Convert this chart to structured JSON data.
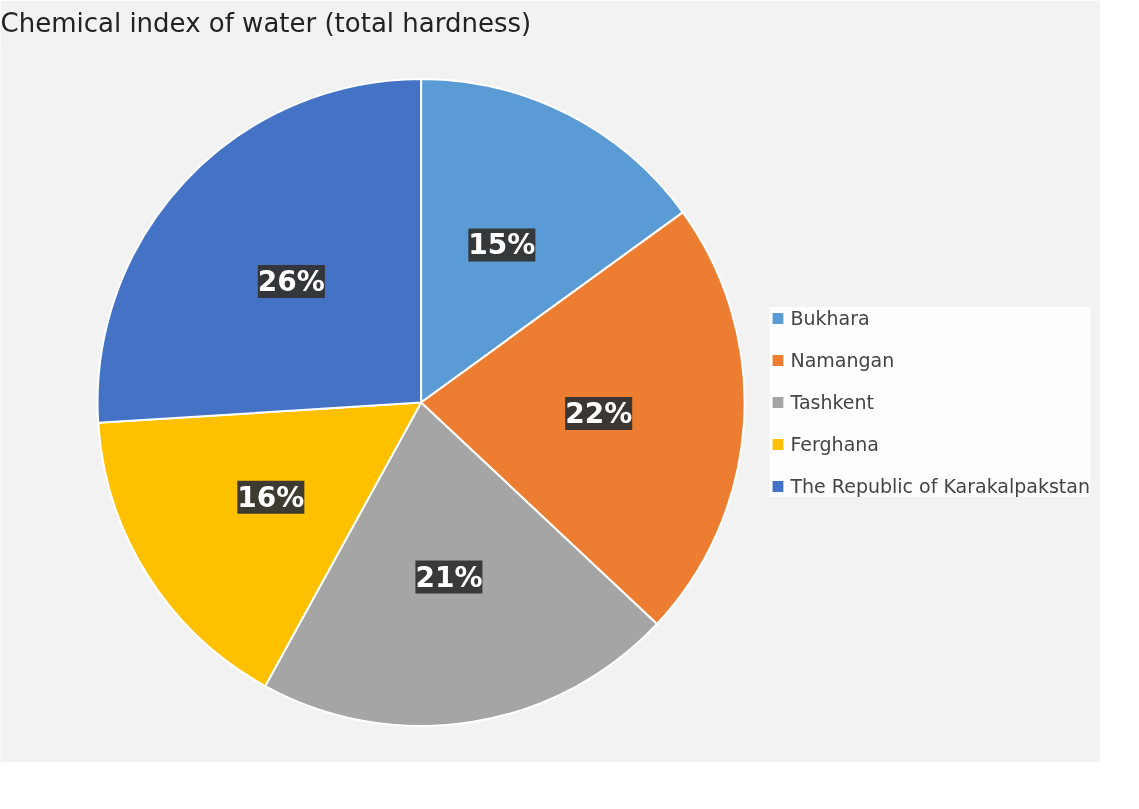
{
  "chart_data": {
    "type": "pie",
    "title": "Chemical index of water (total hardness)",
    "categories": [
      "Bukhara",
      "Namangan",
      "Tashkent",
      "Ferghana",
      "The Republic of Karakalpakstan"
    ],
    "values": [
      15,
      22,
      21,
      16,
      26
    ],
    "colors": [
      "#5b9bd5",
      "#ed7d31",
      "#a5a5a5",
      "#ffc000",
      "#4472c4"
    ],
    "value_labels": [
      "15%",
      "22%",
      "21%",
      "16%",
      "26%"
    ],
    "legend": "right"
  }
}
